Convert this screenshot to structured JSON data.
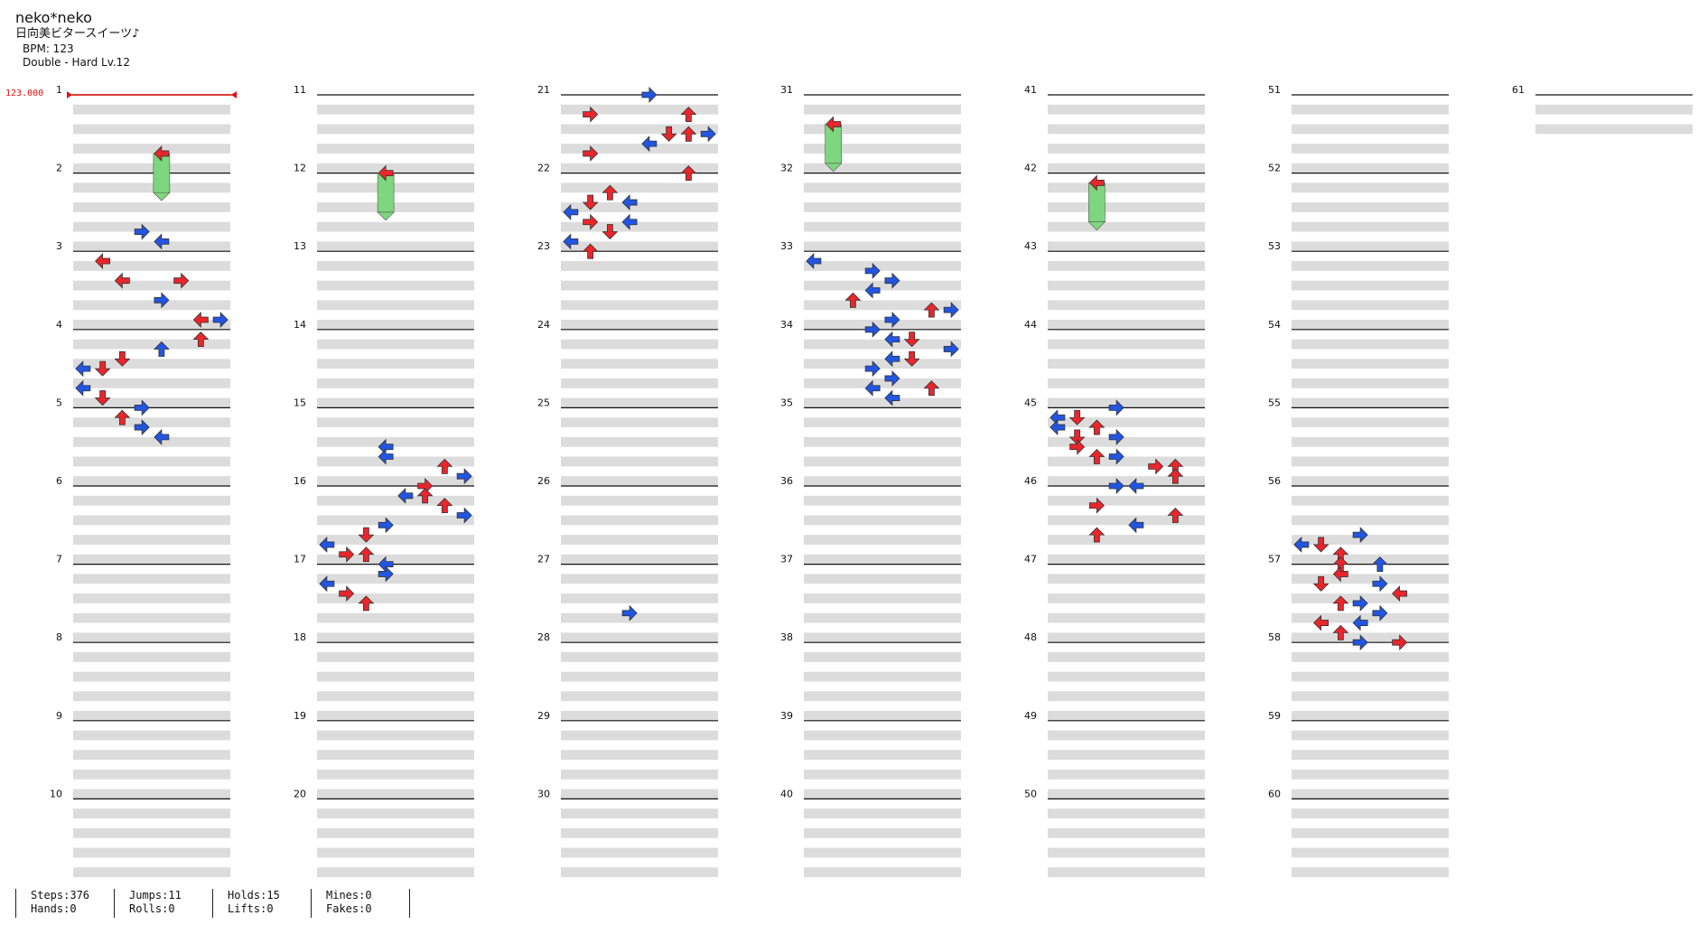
{
  "header": {
    "artist": "neko*neko",
    "title": "日向美ビタースイーツ♪",
    "bpm": "BPM: 123",
    "difficulty": "Double - Hard  Lv.12"
  },
  "bpm_marker": "123.000",
  "measures": [
    "1",
    "2",
    "3",
    "4",
    "5",
    "6",
    "7",
    "8",
    "9",
    "10",
    "11",
    "12",
    "13",
    "14",
    "15",
    "16",
    "17",
    "18",
    "19",
    "20",
    "21",
    "22",
    "23",
    "24",
    "25",
    "26",
    "27",
    "28",
    "29",
    "30",
    "31",
    "32",
    "33",
    "34",
    "35",
    "36",
    "37",
    "38",
    "39",
    "40",
    "41",
    "42",
    "43",
    "44",
    "45",
    "46",
    "47",
    "48",
    "49",
    "50",
    "51",
    "52",
    "53",
    "54",
    "55",
    "56",
    "57",
    "58",
    "59",
    "60",
    "61"
  ],
  "stats": [
    {
      "top": "Steps:376",
      "bottom": "Hands:0"
    },
    {
      "top": "Jumps:11",
      "bottom": "Rolls:0"
    },
    {
      "top": "Holds:15",
      "bottom": "Lifts:0"
    },
    {
      "top": "Mines:0",
      "bottom": "Fakes:0"
    }
  ],
  "colors": {
    "red": "#e8262c",
    "blue": "#2255e0",
    "yellow": "#f2e022",
    "orange": "#f08020",
    "hold": "#7ed67e",
    "bpm_line": "#e01010"
  },
  "notes": [
    [
      14,
      3,
      "R"
    ],
    [
      15,
      4,
      "L"
    ],
    [
      17,
      1,
      "L"
    ],
    [
      19,
      5,
      "R"
    ],
    [
      19,
      2,
      "L"
    ],
    [
      21,
      4,
      "R"
    ],
    [
      23,
      7,
      "R"
    ],
    [
      23,
      6,
      "L"
    ],
    [
      25,
      6,
      "U"
    ],
    [
      26,
      4,
      "U"
    ],
    [
      27,
      2,
      "D"
    ],
    [
      28,
      0,
      "L"
    ],
    [
      28,
      1,
      "D"
    ],
    [
      30,
      0,
      "L"
    ],
    [
      31,
      1,
      "D"
    ],
    [
      32,
      3,
      "R"
    ],
    [
      33,
      2,
      "U"
    ],
    [
      34,
      3,
      "R"
    ],
    [
      35,
      4,
      "L"
    ],
    [
      36,
      3,
      "L"
    ],
    [
      37,
      3,
      "L"
    ],
    [
      38,
      6,
      "U"
    ],
    [
      39,
      7,
      "R"
    ],
    [
      40,
      5,
      "R"
    ],
    [
      41,
      4,
      "L"
    ],
    [
      41,
      5,
      "U"
    ],
    [
      42,
      6,
      "U"
    ],
    [
      43,
      7,
      "R"
    ],
    [
      44,
      3,
      "R"
    ],
    [
      45,
      2,
      "D"
    ],
    [
      46,
      0,
      "L"
    ],
    [
      47,
      1,
      "R"
    ],
    [
      47,
      2,
      "U"
    ],
    [
      48,
      3,
      "L"
    ],
    [
      49,
      3,
      "R"
    ],
    [
      50,
      0,
      "L"
    ],
    [
      51,
      1,
      "R"
    ],
    [
      52,
      2,
      "U"
    ],
    [
      53,
      3,
      "R"
    ],
    [
      0,
      4,
      "R"
    ],
    [
      2,
      1,
      "R"
    ],
    [
      2,
      6,
      "U"
    ],
    [
      4,
      6,
      "U"
    ],
    [
      4,
      7,
      "R"
    ],
    [
      4,
      5,
      "D"
    ],
    [
      5,
      4,
      "L"
    ],
    [
      6,
      1,
      "R"
    ],
    [
      8,
      6,
      "U"
    ],
    [
      10,
      2,
      "U"
    ],
    [
      11,
      1,
      "D"
    ],
    [
      11,
      3,
      "L"
    ],
    [
      12,
      0,
      "L"
    ],
    [
      13,
      3,
      "L"
    ],
    [
      13,
      1,
      "R"
    ],
    [
      14,
      2,
      "D"
    ],
    [
      15,
      0,
      "L"
    ],
    [
      16,
      1,
      "U"
    ],
    [
      17,
      0,
      "L"
    ],
    [
      18,
      3,
      "R"
    ],
    [
      19,
      4,
      "R"
    ],
    [
      20,
      3,
      "L"
    ],
    [
      21,
      2,
      "U"
    ],
    [
      22,
      6,
      "U"
    ],
    [
      22,
      7,
      "R"
    ],
    [
      23,
      4,
      "R"
    ],
    [
      24,
      3,
      "R"
    ],
    [
      25,
      4,
      "L"
    ],
    [
      25,
      5,
      "D"
    ],
    [
      26,
      7,
      "R"
    ],
    [
      27,
      4,
      "L"
    ],
    [
      27,
      5,
      "D"
    ],
    [
      28,
      3,
      "R"
    ],
    [
      29,
      4,
      "R"
    ],
    [
      30,
      6,
      "U"
    ],
    [
      30,
      3,
      "L"
    ],
    [
      31,
      4,
      "L"
    ],
    [
      32,
      3,
      "R"
    ],
    [
      33,
      0,
      "L"
    ],
    [
      33,
      1,
      "D"
    ],
    [
      34,
      0,
      "L"
    ],
    [
      34,
      2,
      "U"
    ],
    [
      35,
      1,
      "D"
    ],
    [
      35,
      3,
      "R"
    ],
    [
      36,
      1,
      "R"
    ],
    [
      37,
      2,
      "U"
    ],
    [
      37,
      3,
      "R"
    ],
    [
      38,
      5,
      "R"
    ],
    [
      38,
      6,
      "U"
    ],
    [
      39,
      6,
      "U"
    ],
    [
      40,
      3,
      "R"
    ],
    [
      40,
      4,
      "L"
    ],
    [
      42,
      2,
      "R"
    ],
    [
      43,
      6,
      "U"
    ],
    [
      44,
      4,
      "L"
    ],
    [
      45,
      2,
      "U"
    ],
    [
      45,
      3,
      "R"
    ],
    [
      46,
      0,
      "L"
    ],
    [
      46,
      1,
      "D"
    ],
    [
      47,
      2,
      "U"
    ],
    [
      48,
      2,
      "U"
    ],
    [
      48,
      4,
      "U"
    ],
    [
      49,
      2,
      "L"
    ],
    [
      50,
      1,
      "D"
    ],
    [
      50,
      4,
      "R"
    ],
    [
      51,
      5,
      "L"
    ],
    [
      52,
      2,
      "U"
    ],
    [
      52,
      3,
      "R"
    ],
    [
      53,
      4,
      "R"
    ],
    [
      54,
      1,
      "L"
    ],
    [
      54,
      3,
      "L"
    ],
    [
      55,
      2,
      "U"
    ],
    [
      56,
      3,
      "R"
    ],
    [
      56,
      5,
      "R"
    ]
  ],
  "holds": [
    [
      15,
      1,
      3,
      "L"
    ],
    [
      4,
      2,
      9,
      "L"
    ],
    [
      18,
      4,
      6,
      "L"
    ],
    [
      25,
      3,
      8,
      "L"
    ]
  ],
  "footer_note": ""
}
